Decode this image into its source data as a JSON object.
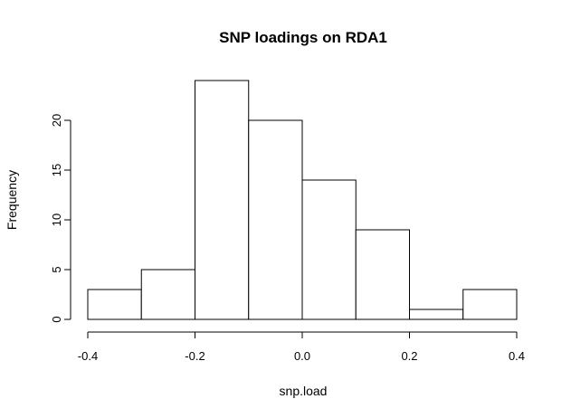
{
  "chart_data": {
    "type": "bar",
    "subtype": "histogram",
    "title": "SNP loadings on RDA1",
    "xlabel": "snp.load",
    "ylabel": "Frequency",
    "bins": [
      {
        "start": -0.4,
        "end": -0.3,
        "count": 3
      },
      {
        "start": -0.3,
        "end": -0.2,
        "count": 5
      },
      {
        "start": -0.2,
        "end": -0.1,
        "count": 24
      },
      {
        "start": -0.1,
        "end": 0.0,
        "count": 20
      },
      {
        "start": 0.0,
        "end": 0.1,
        "count": 14
      },
      {
        "start": 0.1,
        "end": 0.2,
        "count": 9
      },
      {
        "start": 0.2,
        "end": 0.3,
        "count": 1
      },
      {
        "start": 0.3,
        "end": 0.4,
        "count": 3
      }
    ],
    "xlim": [
      -0.4,
      0.4
    ],
    "ylim": [
      0,
      24
    ],
    "xticks": [
      -0.4,
      -0.2,
      0.0,
      0.2,
      0.4
    ],
    "xtick_labels": [
      "-0.4",
      "-0.2",
      "0.0",
      "0.2",
      "0.4"
    ],
    "yticks": [
      0,
      5,
      10,
      15,
      20
    ],
    "ytick_labels": [
      "0",
      "5",
      "10",
      "15",
      "20"
    ],
    "colors": {
      "bar_fill": "#ffffff",
      "bar_stroke": "#000000"
    },
    "grid": false
  }
}
